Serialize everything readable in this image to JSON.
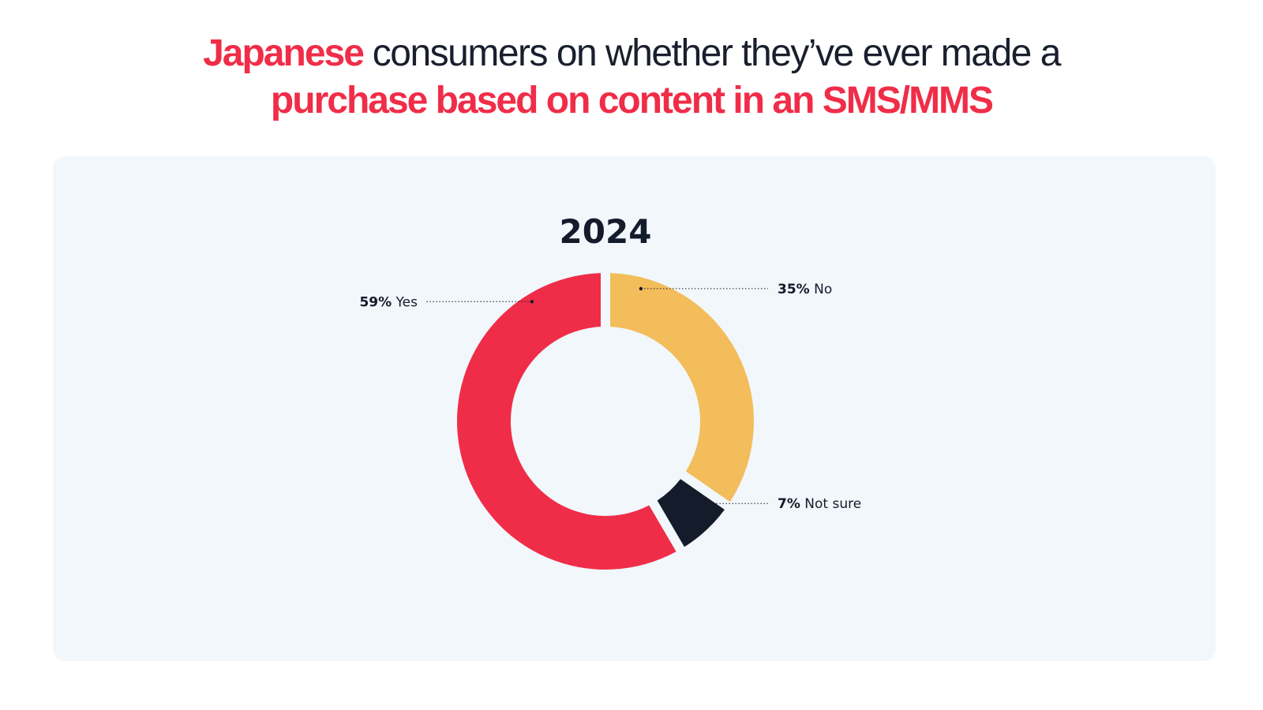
{
  "title": {
    "line1_accent": "Japanese",
    "line1_rest": " consumers on whether they’ve ever made a",
    "line2_accent": "purchase based on content in an SMS/MMS"
  },
  "chart_data": {
    "type": "pie",
    "donut": true,
    "title": "2024",
    "slices": [
      {
        "label": "No",
        "value": 35,
        "pct_text": "35%",
        "color": "#f2bd5a",
        "label_side": "right"
      },
      {
        "label": "Not sure",
        "value": 7,
        "pct_text": "7%",
        "color": "#141b2b",
        "label_side": "right"
      },
      {
        "label": "Yes",
        "value": 59,
        "pct_text": "59%",
        "color": "#f02d48",
        "label_side": "left"
      }
    ]
  },
  "colors": {
    "accent": "#f02d48",
    "panel_bg": "#f1f7fb",
    "text_dark": "#141b2b"
  }
}
